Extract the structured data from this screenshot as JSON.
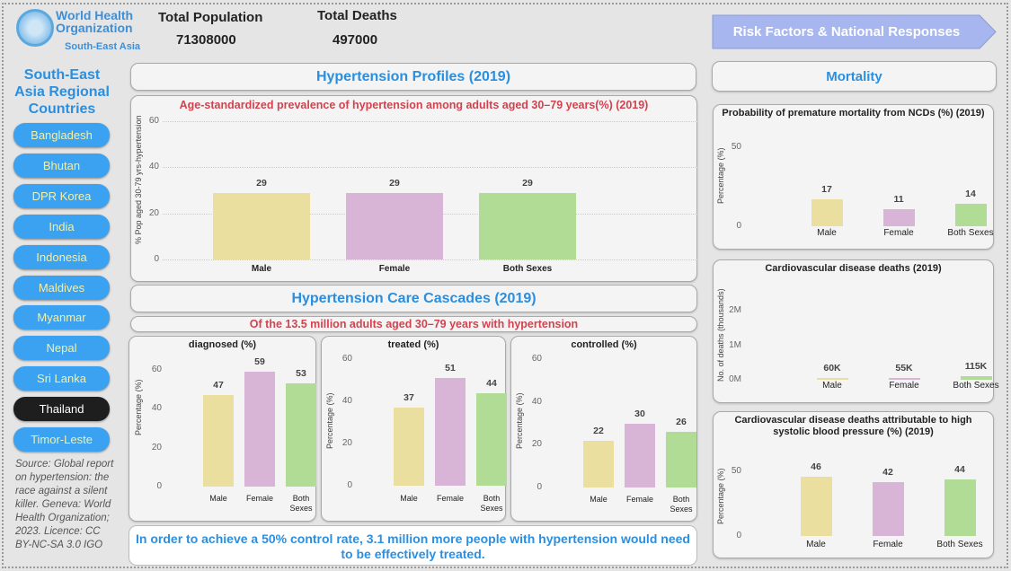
{
  "logo": {
    "line1": "World Health",
    "line2": "Organization",
    "line3": "South-East Asia"
  },
  "kpis": {
    "population_label": "Total Population",
    "population_value": "71308000",
    "deaths_label": "Total Deaths",
    "deaths_value": "497000"
  },
  "sidebar": {
    "title": "South-East Asia Regional Countries",
    "selected": "Thailand",
    "countries": [
      "Bangladesh",
      "Bhutan",
      "DPR Korea",
      "India",
      "Indonesia",
      "Maldives",
      "Myanmar",
      "Nepal",
      "Sri Lanka",
      "Thailand",
      "Timor-Leste"
    ],
    "source": "Source: Global report on hypertension: the race against a silent killer. Geneva: World Health Organization; 2023. Licence: CC BY-NC-SA 3.0 IGO"
  },
  "nav": {
    "risk_button": "Risk Factors & National Responses"
  },
  "sections": {
    "profiles": "Hypertension Profiles (2019)",
    "cascades": "Hypertension Care Cascades (2019)",
    "cascade_subtitle": "Of the 13.5 million adults aged 30–79 years with hypertension",
    "mortality": "Mortality"
  },
  "message": "In order to achieve a 50% control rate, 3.1 million more people with hypertension would need to be effectively treated.",
  "colors": {
    "male": "#ebdfa0",
    "female": "#d8b4d7",
    "both": "#b1dc96",
    "accent": "#2a8fe0",
    "nav_button": "#a7b6ee"
  },
  "chart_data": [
    {
      "id": "prevalence",
      "type": "bar",
      "title": "Age-standardized prevalence of hypertension among adults aged 30–79 years(%) (2019)",
      "ylabel": "% Pop aged 30-79 yrs-hypertension",
      "categories": [
        "Male",
        "Female",
        "Both Sexes"
      ],
      "values": [
        29,
        29,
        29
      ],
      "labels": [
        "29",
        "29",
        "29"
      ],
      "ylim": [
        0,
        60
      ],
      "ticks": [
        "0",
        "20",
        "40",
        "60"
      ],
      "tick_values": [
        0,
        20,
        40,
        60
      ],
      "grid": true
    },
    {
      "id": "diagnosed",
      "type": "bar",
      "title": "diagnosed (%)",
      "ylabel": "Percentage (%)",
      "categories": [
        "Male",
        "Female",
        "Both Sexes"
      ],
      "values": [
        47,
        59,
        53
      ],
      "labels": [
        "47",
        "59",
        "53"
      ],
      "ylim": [
        0,
        60
      ],
      "ticks": [
        "0",
        "20",
        "40",
        "60"
      ],
      "tick_values": [
        0,
        20,
        40,
        60
      ],
      "grid": false
    },
    {
      "id": "treated",
      "type": "bar",
      "title": "treated (%)",
      "ylabel": "Percentage (%)",
      "categories": [
        "Male",
        "Female",
        "Both Sexes"
      ],
      "values": [
        37,
        51,
        44
      ],
      "labels": [
        "37",
        "51",
        "44"
      ],
      "ylim": [
        0,
        60
      ],
      "ticks": [
        "0",
        "20",
        "40",
        "60"
      ],
      "tick_values": [
        0,
        20,
        40,
        60
      ],
      "grid": false
    },
    {
      "id": "controlled",
      "type": "bar",
      "title": "controlled (%)",
      "ylabel": "Percentage (%)",
      "categories": [
        "Male",
        "Female",
        "Both Sexes"
      ],
      "values": [
        22,
        30,
        26
      ],
      "labels": [
        "22",
        "30",
        "26"
      ],
      "ylim": [
        0,
        60
      ],
      "ticks": [
        "0",
        "20",
        "40",
        "60"
      ],
      "tick_values": [
        0,
        20,
        40,
        60
      ],
      "grid": false
    },
    {
      "id": "premature",
      "type": "bar",
      "title": "Probability of premature mortality from NCDs (%) (2019)",
      "ylabel": "Percentage (%)",
      "categories": [
        "Male",
        "Female",
        "Both Sexes"
      ],
      "values": [
        17,
        11,
        14
      ],
      "labels": [
        "17",
        "11",
        "14"
      ],
      "ylim": [
        0,
        60
      ],
      "ticks": [
        "0",
        "50"
      ],
      "tick_values": [
        0,
        50
      ],
      "grid": false
    },
    {
      "id": "cvd_deaths",
      "type": "bar",
      "title": "Cardiovascular disease deaths (2019)",
      "ylabel": "No. of deaths (thousands)",
      "categories": [
        "Male",
        "Female",
        "Both Sexes"
      ],
      "values": [
        60000,
        55000,
        115000
      ],
      "labels": [
        "60K",
        "55K",
        "115K"
      ],
      "ylim": [
        0,
        2500000
      ],
      "ticks": [
        "0M",
        "1M",
        "2M"
      ],
      "tick_values": [
        0,
        1000000,
        2000000
      ],
      "grid": false
    },
    {
      "id": "cvd_sbp",
      "type": "bar",
      "title": "Cardiovascular disease deaths attributable to high systolic blood pressure (%) (2019)",
      "ylabel": "Percentage (%)",
      "categories": [
        "Male",
        "Female",
        "Both Sexes"
      ],
      "values": [
        46,
        42,
        44
      ],
      "labels": [
        "46",
        "42",
        "44"
      ],
      "ylim": [
        0,
        60
      ],
      "ticks": [
        "0",
        "50"
      ],
      "tick_values": [
        0,
        50
      ],
      "grid": false
    }
  ]
}
